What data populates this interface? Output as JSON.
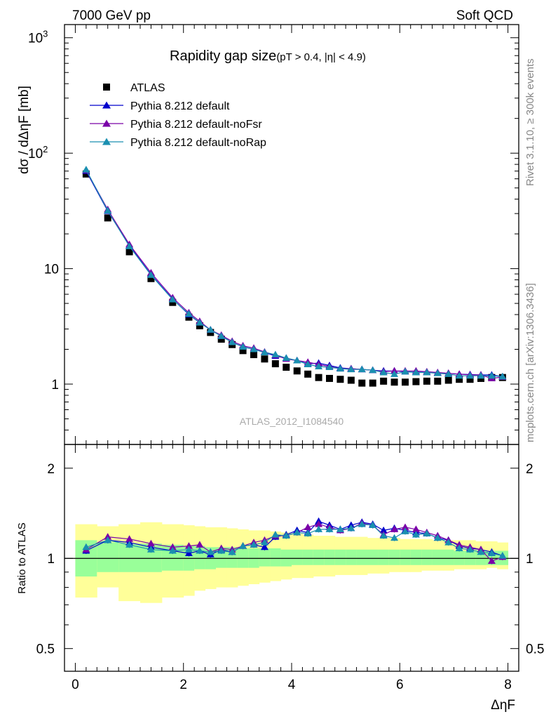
{
  "header": {
    "left_label": "7000 GeV pp",
    "right_label": "Soft QCD"
  },
  "side_labels": {
    "rivet": "Rivet 3.1.10, ≥ 300k events",
    "mcplots": "mcplots.cern.ch [arXiv:1306.3436]"
  },
  "colors": {
    "atlas": "#000000",
    "default": "#0000cc",
    "noFsr": "#7a00a8",
    "noRap": "#1a8fb0",
    "band_inner": "#99ff99",
    "band_outer": "#ffff99"
  },
  "chart_data": [
    {
      "type": "scatter",
      "title": "Rapidity gap size",
      "title_cuts": "(pT > 0.4, |η| < 4.9)",
      "ylabel": "dσ / dΔηF [mb]",
      "analysis_label": "ATLAS_2012_I1084540",
      "yscale": "log",
      "xlim": [
        -0.2,
        8.2
      ],
      "ylim": [
        0.3,
        1300
      ],
      "ytick_labels": [
        "1",
        "10",
        "10^2",
        "10^3"
      ],
      "legend_placement": "top-left",
      "x": [
        0.2,
        0.6,
        1.0,
        1.4,
        1.8,
        2.1,
        2.3,
        2.5,
        2.7,
        2.9,
        3.1,
        3.3,
        3.5,
        3.7,
        3.9,
        4.1,
        4.3,
        4.5,
        4.7,
        4.9,
        5.1,
        5.3,
        5.5,
        5.7,
        5.9,
        6.1,
        6.3,
        6.5,
        6.7,
        6.9,
        7.1,
        7.3,
        7.5,
        7.7,
        7.9
      ],
      "series": [
        {
          "name": "ATLAS",
          "marker": "square",
          "values": [
            66,
            27.5,
            14,
            8.2,
            5.1,
            3.8,
            3.2,
            2.8,
            2.45,
            2.2,
            1.95,
            1.8,
            1.65,
            1.5,
            1.4,
            1.3,
            1.22,
            1.14,
            1.12,
            1.1,
            1.08,
            1.02,
            1.02,
            1.06,
            1.04,
            1.04,
            1.05,
            1.06,
            1.06,
            1.08,
            1.1,
            1.1,
            1.12,
            1.14,
            1.14
          ]
        },
        {
          "name": "Pythia 8.212 default",
          "marker": "triangle",
          "values": [
            70,
            31.5,
            15.8,
            8.9,
            5.45,
            4.0,
            3.4,
            2.95,
            2.6,
            2.3,
            2.1,
            2.0,
            1.88,
            1.75,
            1.68,
            1.6,
            1.5,
            1.52,
            1.45,
            1.38,
            1.36,
            1.34,
            1.32,
            1.3,
            1.3,
            1.28,
            1.27,
            1.26,
            1.25,
            1.24,
            1.22,
            1.21,
            1.2,
            1.2,
            1.16
          ]
        },
        {
          "name": "Pythia 8.212 default-noFsr",
          "marker": "triangle",
          "values": [
            71,
            32.5,
            16.2,
            9.2,
            5.6,
            4.15,
            3.5,
            2.95,
            2.65,
            2.35,
            2.15,
            2.05,
            1.9,
            1.78,
            1.65,
            1.6,
            1.55,
            1.48,
            1.42,
            1.36,
            1.36,
            1.34,
            1.32,
            1.28,
            1.3,
            1.3,
            1.3,
            1.28,
            1.26,
            1.24,
            1.22,
            1.2,
            1.2,
            1.12,
            1.15
          ]
        },
        {
          "name": "Pythia 8.212 default-noRap",
          "marker": "triangle",
          "values": [
            72,
            31.8,
            15.6,
            8.8,
            5.4,
            4.05,
            3.4,
            2.95,
            2.6,
            2.3,
            2.1,
            2.0,
            1.88,
            1.8,
            1.68,
            1.6,
            1.48,
            1.42,
            1.4,
            1.36,
            1.34,
            1.34,
            1.32,
            1.26,
            1.22,
            1.28,
            1.26,
            1.26,
            1.24,
            1.22,
            1.18,
            1.18,
            1.18,
            1.18,
            1.16
          ]
        }
      ]
    },
    {
      "type": "scatter",
      "ylabel": "Ratio to ATLAS",
      "xlabel": "ΔηF",
      "yscale": "log",
      "xlim": [
        -0.2,
        8.2
      ],
      "ylim": [
        0.42,
        2.4
      ],
      "ytick_labels": [
        "0.5",
        "1",
        "2"
      ],
      "xtick_labels": [
        "0",
        "2",
        "4",
        "6",
        "8"
      ],
      "reference_line": 1,
      "uncertainty_bands": {
        "edges": [
          0.0,
          0.4,
          0.8,
          1.2,
          1.6,
          2.0,
          2.2,
          2.4,
          2.6,
          2.8,
          3.0,
          3.2,
          3.4,
          3.6,
          3.8,
          4.0,
          4.2,
          4.4,
          4.6,
          4.8,
          5.0,
          5.2,
          5.4,
          5.6,
          5.8,
          6.0,
          6.2,
          6.4,
          6.6,
          6.8,
          7.0,
          7.2,
          7.4,
          7.6,
          7.8,
          8.0
        ],
        "inner_low": [
          0.87,
          0.9,
          0.9,
          0.9,
          0.91,
          0.91,
          0.92,
          0.92,
          0.93,
          0.93,
          0.93,
          0.93,
          0.94,
          0.94,
          0.94,
          0.95,
          0.95,
          0.95,
          0.95,
          0.95,
          0.95,
          0.95,
          0.95,
          0.95,
          0.95,
          0.95,
          0.95,
          0.95,
          0.95,
          0.95,
          0.95,
          0.95,
          0.95,
          0.95,
          0.95
        ],
        "inner_high": [
          1.15,
          1.13,
          1.12,
          1.12,
          1.11,
          1.1,
          1.1,
          1.09,
          1.09,
          1.09,
          1.08,
          1.08,
          1.08,
          1.08,
          1.07,
          1.07,
          1.07,
          1.07,
          1.07,
          1.07,
          1.07,
          1.07,
          1.07,
          1.07,
          1.07,
          1.07,
          1.07,
          1.07,
          1.07,
          1.07,
          1.06,
          1.06,
          1.06,
          1.06,
          1.06
        ],
        "outer_low": [
          0.74,
          0.8,
          0.72,
          0.71,
          0.74,
          0.75,
          0.78,
          0.79,
          0.8,
          0.8,
          0.81,
          0.82,
          0.83,
          0.84,
          0.85,
          0.86,
          0.86,
          0.87,
          0.87,
          0.88,
          0.88,
          0.88,
          0.89,
          0.89,
          0.9,
          0.9,
          0.9,
          0.91,
          0.91,
          0.91,
          0.92,
          0.92,
          0.92,
          0.93,
          0.92
        ],
        "outer_high": [
          1.3,
          1.28,
          1.3,
          1.32,
          1.3,
          1.29,
          1.28,
          1.27,
          1.27,
          1.26,
          1.25,
          1.24,
          1.24,
          1.23,
          1.22,
          1.21,
          1.2,
          1.19,
          1.19,
          1.18,
          1.18,
          1.18,
          1.17,
          1.17,
          1.17,
          1.16,
          1.16,
          1.16,
          1.15,
          1.15,
          1.15,
          1.15,
          1.14,
          1.14,
          1.13
        ]
      },
      "x": [
        0.2,
        0.6,
        1.0,
        1.4,
        1.8,
        2.1,
        2.3,
        2.5,
        2.7,
        2.9,
        3.1,
        3.3,
        3.5,
        3.7,
        3.9,
        4.1,
        4.3,
        4.5,
        4.7,
        4.9,
        5.1,
        5.3,
        5.5,
        5.7,
        5.9,
        6.1,
        6.3,
        6.5,
        6.7,
        6.9,
        7.1,
        7.3,
        7.5,
        7.7,
        7.9
      ],
      "series": [
        {
          "name": "Pythia 8.212 default",
          "values": [
            1.06,
            1.15,
            1.13,
            1.09,
            1.06,
            1.04,
            1.06,
            1.03,
            1.07,
            1.05,
            1.1,
            1.11,
            1.09,
            1.18,
            1.2,
            1.24,
            1.22,
            1.33,
            1.29,
            1.25,
            1.29,
            1.32,
            1.3,
            1.24,
            1.26,
            1.24,
            1.22,
            1.21,
            1.17,
            1.15,
            1.1,
            1.08,
            1.07,
            1.05,
            1.02
          ]
        },
        {
          "name": "Pythia 8.212 default-noFsr",
          "values": [
            1.07,
            1.18,
            1.16,
            1.12,
            1.09,
            1.1,
            1.11,
            1.05,
            1.08,
            1.07,
            1.1,
            1.13,
            1.15,
            1.19,
            1.19,
            1.22,
            1.27,
            1.3,
            1.27,
            1.24,
            1.26,
            1.31,
            1.29,
            1.2,
            1.25,
            1.27,
            1.25,
            1.22,
            1.19,
            1.15,
            1.11,
            1.09,
            1.07,
            0.98,
            1.01
          ]
        },
        {
          "name": "Pythia 8.212 default-noRap",
          "values": [
            1.09,
            1.15,
            1.11,
            1.07,
            1.06,
            1.07,
            1.06,
            1.05,
            1.06,
            1.05,
            1.1,
            1.11,
            1.13,
            1.2,
            1.19,
            1.22,
            1.21,
            1.25,
            1.25,
            1.25,
            1.26,
            1.3,
            1.29,
            1.19,
            1.17,
            1.23,
            1.2,
            1.21,
            1.17,
            1.13,
            1.08,
            1.07,
            1.05,
            1.04,
            1.02
          ]
        }
      ]
    }
  ]
}
